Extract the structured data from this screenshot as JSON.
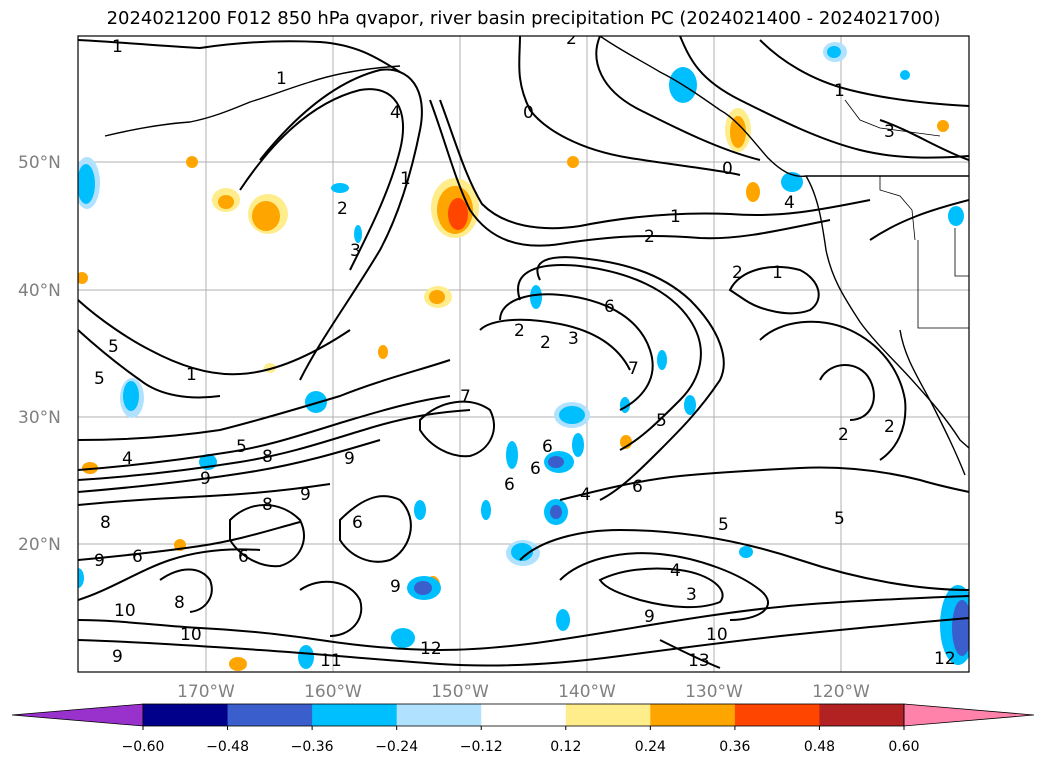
{
  "title": "2024021200 F012 850 hPa qvapor, river basin precipitation PC (2024021400 - 2024021700)",
  "lat_labels": [
    "50°N",
    "40°N",
    "30°N",
    "20°N"
  ],
  "lon_labels": [
    "170°W",
    "160°W",
    "150°W",
    "140°W",
    "130°W",
    "120°W"
  ],
  "contour_labels": [
    "1",
    "1",
    "2",
    "4",
    "0",
    "1",
    "3",
    "0",
    "4",
    "2",
    "1",
    "3",
    "1",
    "2",
    "2",
    "1",
    "2",
    "2",
    "3",
    "6",
    "5",
    "5",
    "1",
    "7",
    "4",
    "5",
    "9",
    "8",
    "9",
    "6",
    "6",
    "4",
    "7",
    "6",
    "9",
    "8",
    "6",
    "5",
    "6",
    "5",
    "2",
    "2",
    "8",
    "6",
    "9",
    "9",
    "10",
    "10",
    "11",
    "12",
    "13",
    "10",
    "12",
    "9",
    "8",
    "6",
    "4",
    "3",
    "9",
    "5"
  ],
  "colorbar": {
    "colors": [
      "#9932cc",
      "#00008b",
      "#3a5fcd",
      "#00bfff",
      "#b0e2ff",
      "#ffffff",
      "#ffec8b",
      "#ffa500",
      "#ff4500",
      "#b22222",
      "#ff82ab"
    ],
    "tick_labels": [
      "−0.60",
      "−0.48",
      "−0.36",
      "−0.24",
      "−0.12",
      "0.12",
      "0.24",
      "0.36",
      "0.48",
      "0.60"
    ]
  }
}
